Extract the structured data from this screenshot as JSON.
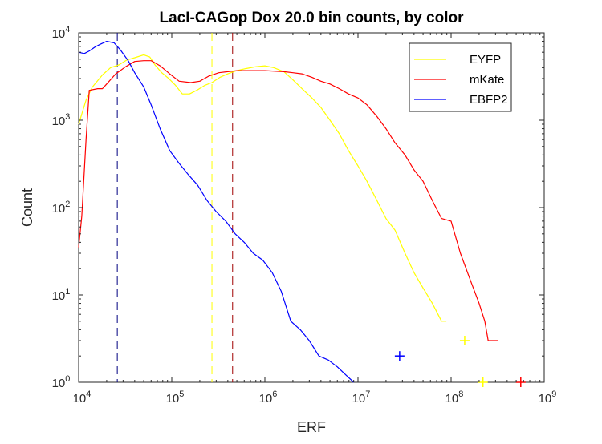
{
  "chart_data": {
    "type": "line",
    "title": "LacI-CAGop Dox 20.0 bin counts, by color",
    "xlabel": "ERF",
    "ylabel": "Count",
    "xscale": "log",
    "yscale": "log",
    "xlim": [
      10000,
      1000000000
    ],
    "ylim": [
      1,
      10000
    ],
    "x_ticks": [
      {
        "value": 10000,
        "base": "10",
        "exp": "4"
      },
      {
        "value": 100000,
        "base": "10",
        "exp": "5"
      },
      {
        "value": 1000000,
        "base": "10",
        "exp": "6"
      },
      {
        "value": 10000000,
        "base": "10",
        "exp": "7"
      },
      {
        "value": 100000000,
        "base": "10",
        "exp": "8"
      },
      {
        "value": 1000000000,
        "base": "10",
        "exp": "9"
      }
    ],
    "y_ticks": [
      {
        "value": 1,
        "base": "10",
        "exp": "0"
      },
      {
        "value": 10,
        "base": "10",
        "exp": "1"
      },
      {
        "value": 100,
        "base": "10",
        "exp": "2"
      },
      {
        "value": 1000,
        "base": "10",
        "exp": "3"
      },
      {
        "value": 10000,
        "base": "10",
        "exp": "4"
      }
    ],
    "grid": false,
    "legend_position": "top-right",
    "series": [
      {
        "name": "EYFP",
        "color": "#ffff00",
        "points": [
          [
            10000,
            900
          ],
          [
            12000,
            1700
          ],
          [
            14000,
            2400
          ],
          [
            18000,
            3300
          ],
          [
            22000,
            4000
          ],
          [
            27000,
            4300
          ],
          [
            33000,
            4900
          ],
          [
            40000,
            5200
          ],
          [
            50000,
            5600
          ],
          [
            58000,
            5300
          ],
          [
            66000,
            4300
          ],
          [
            78000,
            3500
          ],
          [
            93000,
            3000
          ],
          [
            110000,
            2500
          ],
          [
            130000,
            2000
          ],
          [
            155000,
            2000
          ],
          [
            185000,
            2200
          ],
          [
            225000,
            2500
          ],
          [
            270000,
            2700
          ],
          [
            330000,
            3100
          ],
          [
            400000,
            3400
          ],
          [
            500000,
            3700
          ],
          [
            620000,
            3900
          ],
          [
            800000,
            4100
          ],
          [
            1000000,
            4200
          ],
          [
            1250000,
            4000
          ],
          [
            1600000,
            3600
          ],
          [
            2000000,
            2900
          ],
          [
            2500000,
            2300
          ],
          [
            3200000,
            1800
          ],
          [
            4000000,
            1400
          ],
          [
            5000000,
            1000
          ],
          [
            6300000,
            700
          ],
          [
            7900000,
            450
          ],
          [
            10000000,
            300
          ],
          [
            12500000,
            200
          ],
          [
            16000000,
            120
          ],
          [
            20000000,
            75
          ],
          [
            25000000,
            55
          ],
          [
            32000000,
            30
          ],
          [
            40000000,
            18
          ],
          [
            50000000,
            12
          ],
          [
            63000000,
            8
          ],
          [
            79000000,
            5
          ],
          [
            89000000,
            5
          ]
        ],
        "markers": [
          [
            140000000,
            3
          ],
          [
            220000000,
            1
          ]
        ]
      },
      {
        "name": "mKate",
        "color": "#ff0000",
        "points": [
          [
            10000,
            35
          ],
          [
            10800,
            80
          ],
          [
            12000,
            600
          ],
          [
            13000,
            2200
          ],
          [
            16000,
            2300
          ],
          [
            18000,
            2300
          ],
          [
            20000,
            2600
          ],
          [
            25000,
            3400
          ],
          [
            32000,
            4100
          ],
          [
            40000,
            4700
          ],
          [
            50000,
            4800
          ],
          [
            60000,
            4800
          ],
          [
            75000,
            4200
          ],
          [
            95000,
            3400
          ],
          [
            120000,
            2800
          ],
          [
            160000,
            2700
          ],
          [
            200000,
            2800
          ],
          [
            250000,
            3200
          ],
          [
            320000,
            3500
          ],
          [
            400000,
            3600
          ],
          [
            500000,
            3700
          ],
          [
            800000,
            3700
          ],
          [
            1000000,
            3700
          ],
          [
            1600000,
            3600
          ],
          [
            2000000,
            3500
          ],
          [
            2500000,
            3400
          ],
          [
            3200000,
            3100
          ],
          [
            4000000,
            2800
          ],
          [
            5000000,
            2600
          ],
          [
            6300000,
            2300
          ],
          [
            7900000,
            2000
          ],
          [
            10000000,
            1800
          ],
          [
            12500000,
            1500
          ],
          [
            16000000,
            1100
          ],
          [
            20000000,
            800
          ],
          [
            25000000,
            550
          ],
          [
            32000000,
            400
          ],
          [
            40000000,
            270
          ],
          [
            50000000,
            200
          ],
          [
            63000000,
            120
          ],
          [
            79000000,
            75
          ],
          [
            100000000,
            70
          ],
          [
            126000000,
            30
          ],
          [
            160000000,
            15
          ],
          [
            200000000,
            8
          ],
          [
            230000000,
            5
          ],
          [
            250000000,
            3
          ],
          [
            320000000,
            3
          ]
        ],
        "markers": [
          [
            560000000,
            1
          ]
        ]
      },
      {
        "name": "EBFP2",
        "color": "#0000ff",
        "points": [
          [
            10000,
            6000
          ],
          [
            11500,
            5800
          ],
          [
            13000,
            6200
          ],
          [
            15000,
            6900
          ],
          [
            17000,
            7400
          ],
          [
            20000,
            8000
          ],
          [
            24000,
            7700
          ],
          [
            28000,
            6400
          ],
          [
            34000,
            4800
          ],
          [
            40000,
            3500
          ],
          [
            50000,
            2400
          ],
          [
            60000,
            1500
          ],
          [
            75000,
            800
          ],
          [
            95000,
            450
          ],
          [
            120000,
            320
          ],
          [
            150000,
            240
          ],
          [
            190000,
            180
          ],
          [
            240000,
            120
          ],
          [
            300000,
            90
          ],
          [
            380000,
            70
          ],
          [
            480000,
            50
          ],
          [
            600000,
            40
          ],
          [
            750000,
            30
          ],
          [
            950000,
            25
          ],
          [
            1200000,
            18
          ],
          [
            1500000,
            11
          ],
          [
            1900000,
            5
          ],
          [
            2400000,
            4
          ],
          [
            3000000,
            3
          ],
          [
            3800000,
            2
          ],
          [
            4800000,
            1.8
          ],
          [
            6000000,
            1.5
          ],
          [
            7500000,
            1.2
          ],
          [
            9000000,
            1
          ]
        ],
        "markers": [
          [
            28000000,
            2
          ]
        ]
      }
    ],
    "vlines": [
      {
        "x": 26000,
        "color": "#000080"
      },
      {
        "x": 270000,
        "color": "#ffff00"
      },
      {
        "x": 450000,
        "color": "#a00000"
      }
    ]
  }
}
